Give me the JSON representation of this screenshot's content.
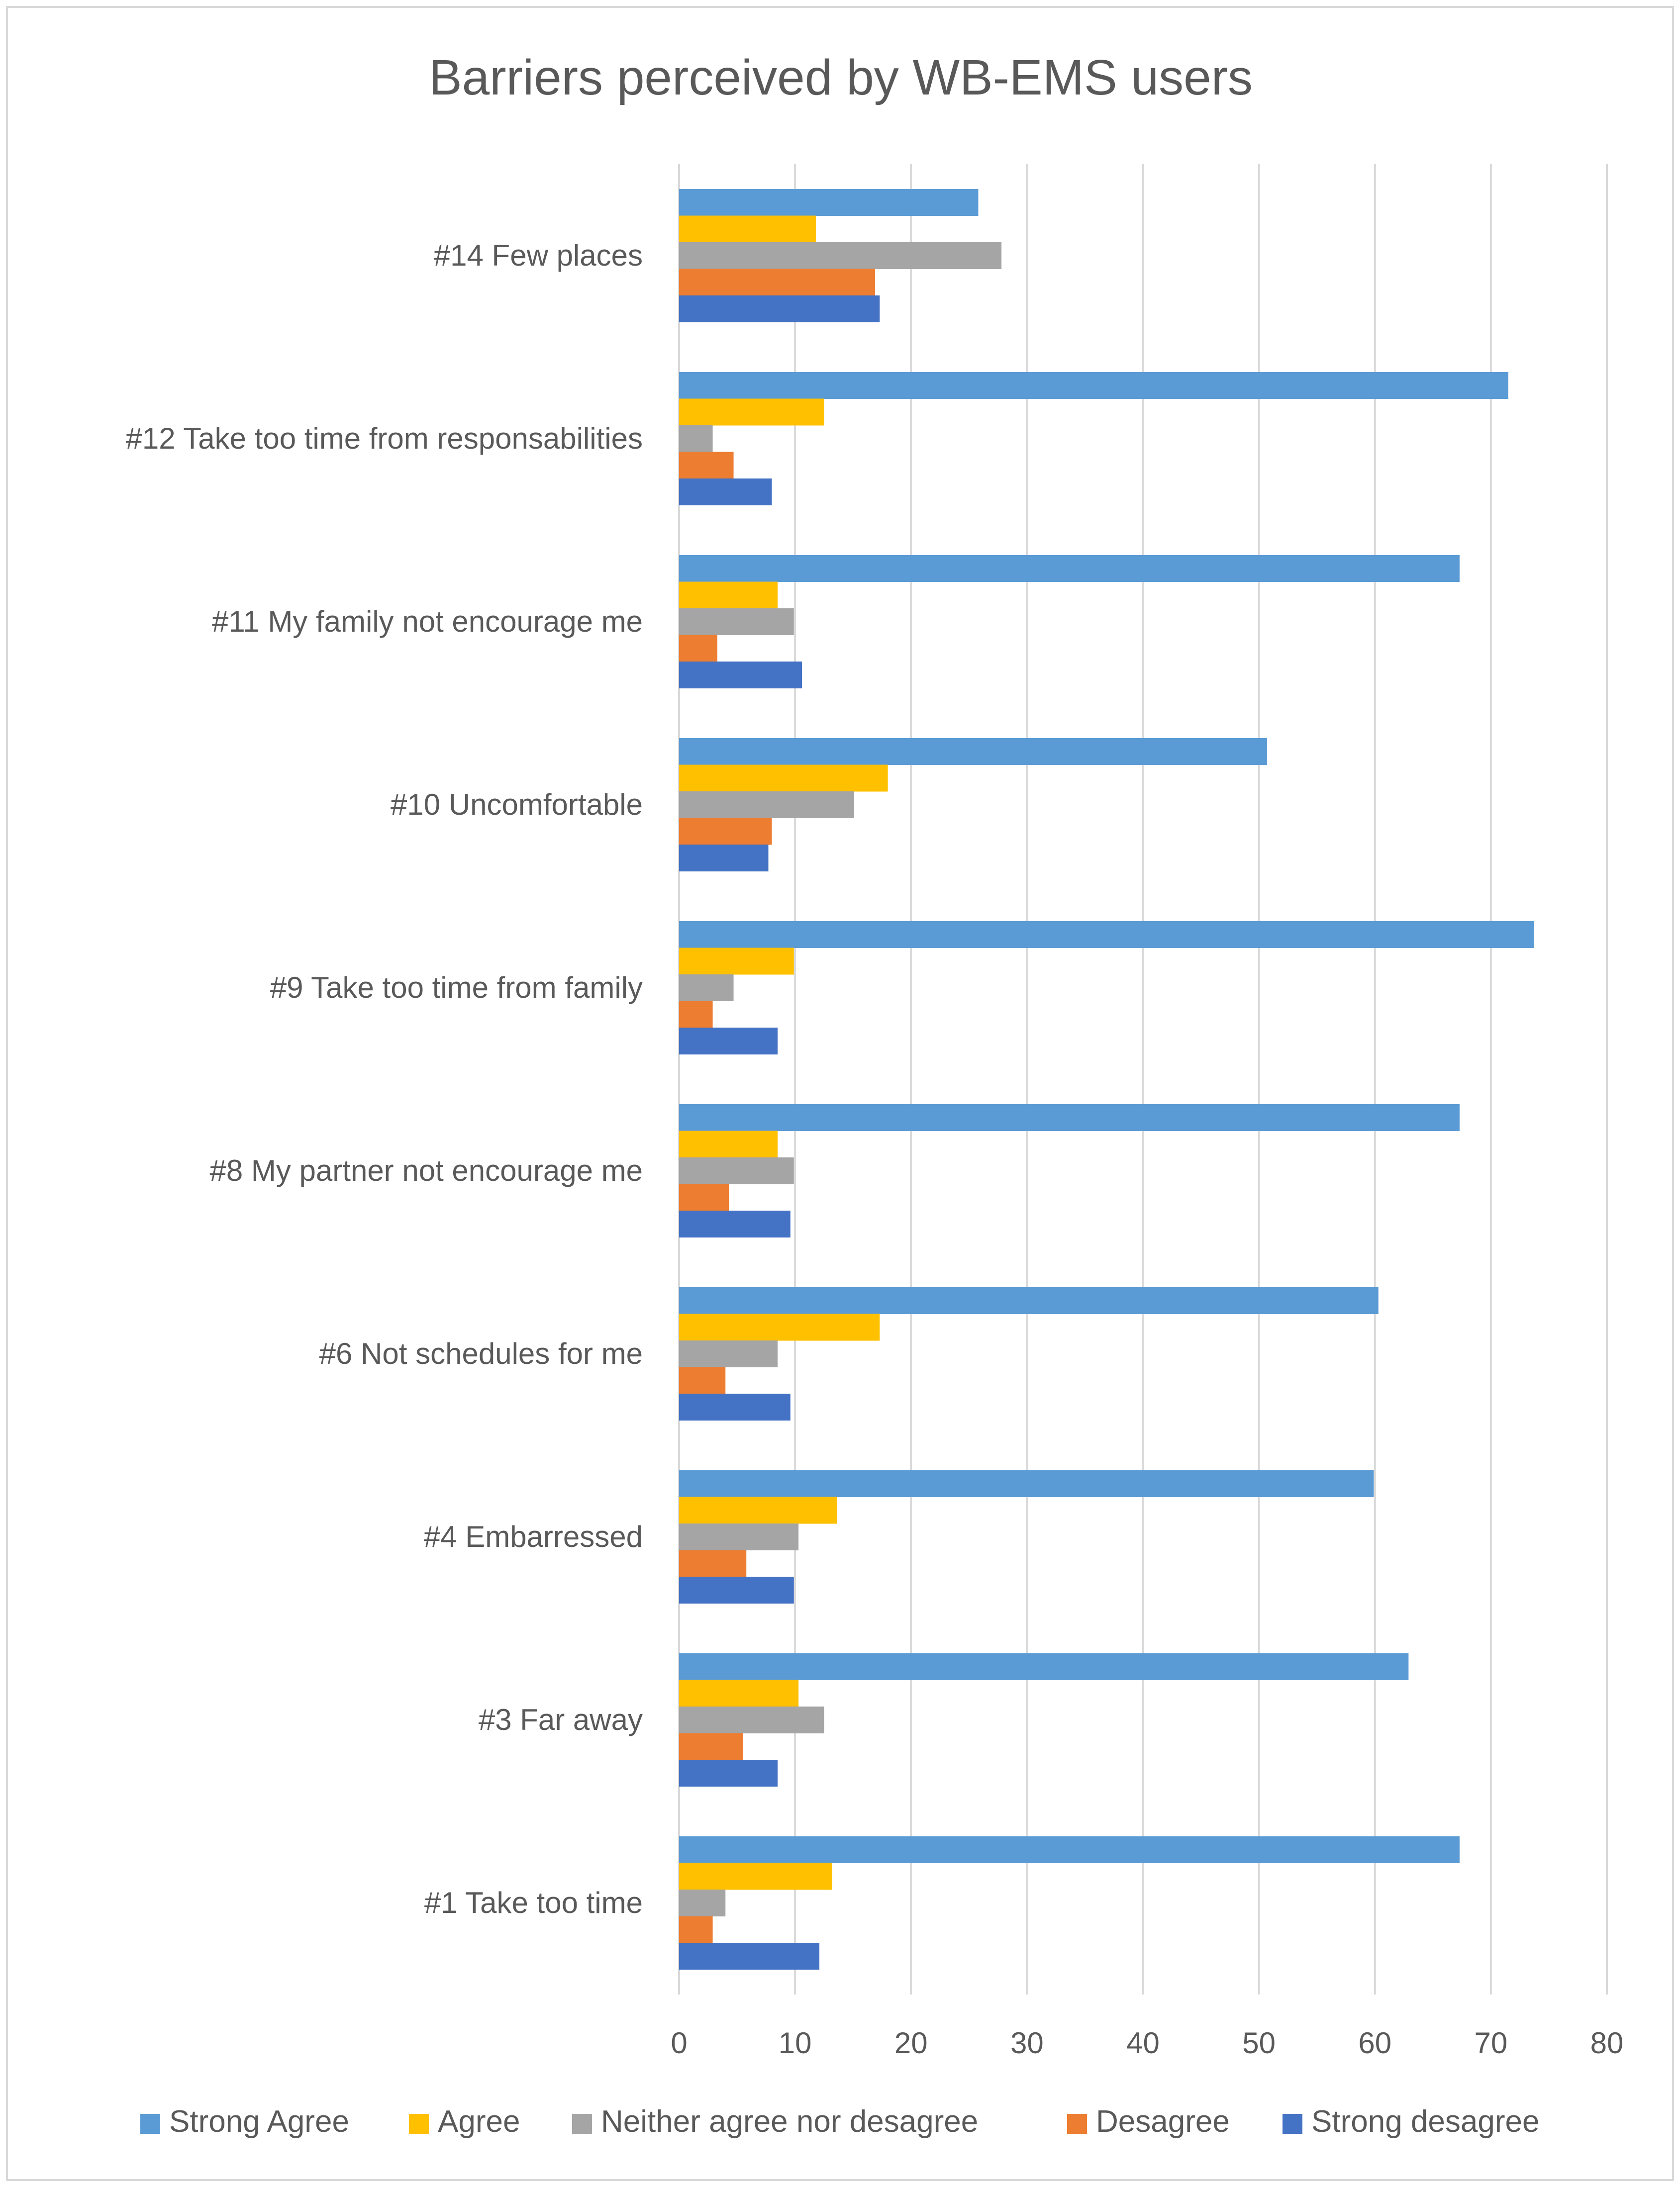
{
  "chart_data": {
    "type": "bar",
    "orientation": "horizontal",
    "title": "Barriers perceived by WB-EMS users",
    "xlabel": "",
    "ylabel": "",
    "xlim": [
      0,
      80
    ],
    "x_ticks": [
      0,
      10,
      20,
      30,
      40,
      50,
      60,
      70,
      80
    ],
    "grid": "vertical",
    "legend_position": "bottom",
    "categories": [
      "#14 Few places",
      "#12 Take too time from responsabilities",
      "#11 My family not encourage me",
      "#10 Uncomfortable",
      "#9 Take too time from family",
      "#8 My partner not encourage me",
      "#6 Not schedules for me",
      "#4 Embarressed",
      "#3 Far away",
      "#1 Take too time"
    ],
    "series": [
      {
        "name": "Strong Agree",
        "color": "#5B9BD5",
        "values": [
          25.8,
          71.5,
          67.3,
          50.7,
          73.7,
          67.3,
          60.3,
          59.9,
          62.9,
          67.3
        ]
      },
      {
        "name": "Agree",
        "color": "#FFC000",
        "values": [
          11.8,
          12.5,
          8.5,
          18.0,
          9.9,
          8.5,
          17.3,
          13.6,
          10.3,
          13.2
        ]
      },
      {
        "name": "Neither agree nor desagree",
        "color": "#A5A5A5",
        "values": [
          27.8,
          2.9,
          9.9,
          15.1,
          4.7,
          9.9,
          8.5,
          10.3,
          12.5,
          4.0
        ]
      },
      {
        "name": "Desagree",
        "color": "#ED7D31",
        "values": [
          16.9,
          4.7,
          3.3,
          8.0,
          2.9,
          4.3,
          4.0,
          5.8,
          5.5,
          2.9
        ]
      },
      {
        "name": "Strong desagree",
        "color": "#4472C4",
        "values": [
          17.3,
          8.0,
          10.6,
          7.7,
          8.5,
          9.6,
          9.6,
          9.9,
          8.5,
          12.1
        ]
      }
    ]
  }
}
